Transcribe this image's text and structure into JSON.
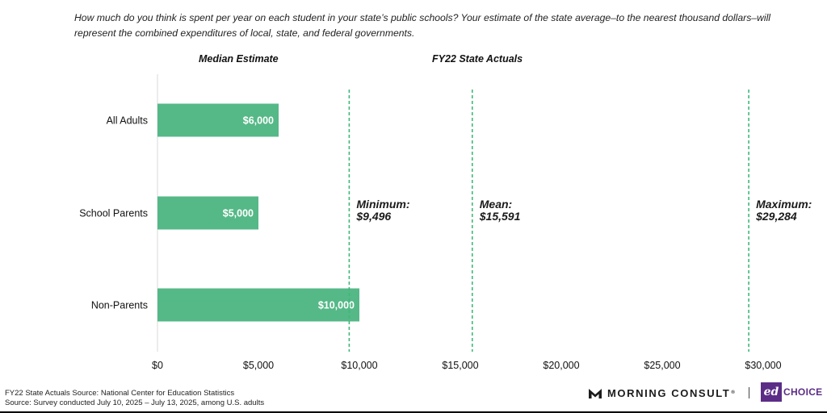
{
  "question": "How much do you think is spent per year on each student in your state’s public schools? Your estimate of the state average–to the nearest thousand dollars–will represent the combined expenditures of local, state, and federal governments.",
  "chart_data": {
    "type": "bar",
    "orientation": "horizontal",
    "left_header": "Median Estimate",
    "right_header": "FY22 State Actuals",
    "categories": [
      "All Adults",
      "School Parents",
      "Non-Parents"
    ],
    "values": [
      6000,
      5000,
      10000
    ],
    "value_labels": [
      "$6,000",
      "$5,000",
      "$10,000"
    ],
    "xlim": [
      0,
      30000
    ],
    "x_ticks": [
      0,
      5000,
      10000,
      15000,
      20000,
      25000,
      30000
    ],
    "x_tick_labels": [
      "$0",
      "$5,000",
      "$10,000",
      "$15,000",
      "$20,000",
      "$25,000",
      "$30,000"
    ],
    "reference_lines": [
      {
        "name": "Minimum:",
        "label": "$9,496",
        "value": 9496
      },
      {
        "name": "Mean:",
        "label": "$15,591",
        "value": 15591
      },
      {
        "name": "Maximum:",
        "label": "$29,284",
        "value": 29284
      }
    ],
    "bar_color": "#55b887",
    "line_color": "#3fb878",
    "grid": false
  },
  "footnotes": {
    "line1": "FY22 State Actuals Source: National Center for Education Statistics",
    "line2": "Source: Survey conducted July 10, 2025 – July 13, 2025, among U.S. adults"
  },
  "logos": {
    "morning_consult": "MORNING CONSULT",
    "ed_badge": "ed",
    "ed_text": "CHOICE"
  }
}
